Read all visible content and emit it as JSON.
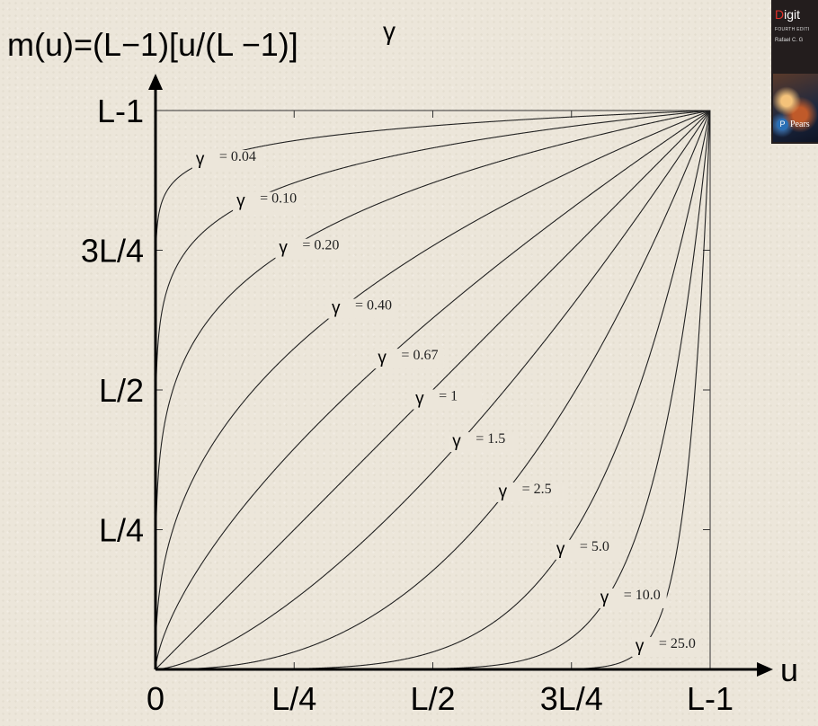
{
  "chart_data": {
    "type": "line",
    "title": "m(u)=(L−1)[u/(L −1)]",
    "title_exponent": "γ",
    "xlabel": "u",
    "x_ticks": [
      "0",
      "L/4",
      "L/2",
      "3L/4",
      "L-1"
    ],
    "y_ticks": [
      "L/4",
      "L/2",
      "3L/4",
      "L-1"
    ],
    "xlim": [
      0,
      1
    ],
    "ylim": [
      0,
      1
    ],
    "grid": false,
    "curve_formula": "y = x^gamma",
    "gamma_symbol": "γ",
    "series": [
      {
        "value_label": "= 0.04",
        "gamma": 0.04
      },
      {
        "value_label": "= 0.10",
        "gamma": 0.1
      },
      {
        "value_label": "= 0.20",
        "gamma": 0.2
      },
      {
        "value_label": "= 0.40",
        "gamma": 0.4
      },
      {
        "value_label": "= 0.67",
        "gamma": 0.67
      },
      {
        "value_label": "= 1",
        "gamma": 1
      },
      {
        "value_label": "= 1.5",
        "gamma": 1.5
      },
      {
        "value_label": "= 2.5",
        "gamma": 2.5
      },
      {
        "value_label": "= 5.0",
        "gamma": 5.0
      },
      {
        "value_label": "= 10.0",
        "gamma": 10.0
      },
      {
        "value_label": "= 25.0",
        "gamma": 25.0
      }
    ]
  },
  "book_cover": {
    "title_first_letter": "D",
    "title_rest": "igit",
    "edition": "FOURTH EDITI",
    "author": "Rafael C. G",
    "publisher": "Pears",
    "publisher_mark": "P"
  }
}
